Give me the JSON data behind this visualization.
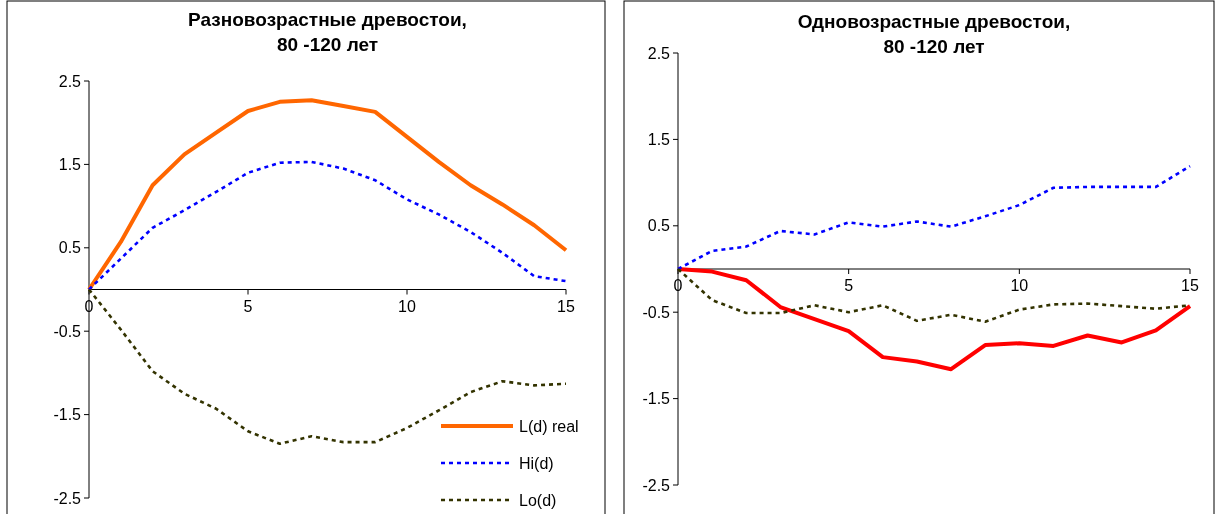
{
  "chart_data": [
    {
      "type": "line",
      "title": "Разновозрастные древостои, 80 -120 лет",
      "x": [
        0,
        1,
        2,
        3,
        4,
        5,
        6,
        7,
        8,
        9,
        10,
        11,
        12,
        13,
        14,
        15
      ],
      "xlim": [
        0,
        15
      ],
      "xticks": [
        0,
        5,
        10,
        15
      ],
      "ylim": [
        -2.5,
        2.5
      ],
      "yticks": [
        -2.5,
        -1.5,
        -0.5,
        0.5,
        1.5,
        2.5
      ],
      "grid": false,
      "legend": "bottom right",
      "series": [
        {
          "name": "L(d) real",
          "color": "#ff6600",
          "line_style": "solid",
          "values": [
            0,
            0.57,
            1.25,
            1.62,
            1.88,
            2.14,
            2.25,
            2.27,
            2.2,
            2.13,
            1.83,
            1.53,
            1.25,
            1.02,
            0.77,
            0.47
          ]
        },
        {
          "name": "Hi(d)",
          "color": "#0000ff",
          "line_style": "dotted",
          "values": [
            0,
            0.37,
            0.74,
            0.95,
            1.17,
            1.4,
            1.52,
            1.53,
            1.45,
            1.31,
            1.08,
            0.9,
            0.69,
            0.44,
            0.16,
            0.1
          ]
        },
        {
          "name": "Lo(d)",
          "color": "#333300",
          "line_style": "dotted",
          "values": [
            0,
            -0.48,
            -0.98,
            -1.25,
            -1.43,
            -1.7,
            -1.85,
            -1.76,
            -1.83,
            -1.83,
            -1.66,
            -1.45,
            -1.23,
            -1.1,
            -1.15,
            -1.13
          ]
        }
      ]
    },
    {
      "type": "line",
      "title": "Одновозрастные древостои, 80 -120 лет",
      "x": [
        0,
        1,
        2,
        3,
        4,
        5,
        6,
        7,
        8,
        9,
        10,
        11,
        12,
        13,
        14,
        15
      ],
      "xlim": [
        0,
        15
      ],
      "xticks": [
        0,
        5,
        10,
        15
      ],
      "ylim": [
        -2.5,
        2.5
      ],
      "yticks": [
        -2.5,
        -1.5,
        -0.5,
        0.5,
        1.5,
        2.5
      ],
      "grid": false,
      "legend": false,
      "series": [
        {
          "color": "#ff0000",
          "line_style": "solid",
          "values": [
            0,
            -0.03,
            -0.13,
            -0.44,
            -0.58,
            -0.72,
            -1.02,
            -1.07,
            -1.16,
            -0.88,
            -0.86,
            -0.89,
            -0.77,
            -0.85,
            -0.71,
            -0.43
          ]
        },
        {
          "color": "#0000ff",
          "line_style": "dotted",
          "values": [
            0,
            0.21,
            0.26,
            0.44,
            0.4,
            0.54,
            0.49,
            0.55,
            0.49,
            0.61,
            0.74,
            0.94,
            0.95,
            0.95,
            0.95,
            1.19
          ]
        },
        {
          "color": "#333300",
          "line_style": "dotted",
          "values": [
            0,
            -0.36,
            -0.51,
            -0.51,
            -0.42,
            -0.5,
            -0.42,
            -0.6,
            -0.53,
            -0.61,
            -0.47,
            -0.41,
            -0.4,
            -0.43,
            -0.46,
            -0.42
          ]
        }
      ]
    }
  ]
}
